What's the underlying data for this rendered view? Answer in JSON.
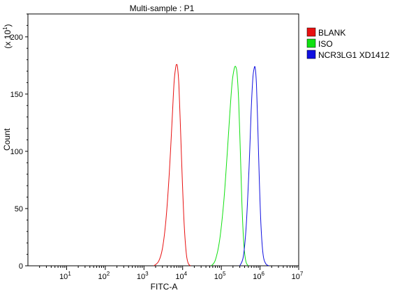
{
  "chart_data": {
    "type": "line",
    "title": "Multi-sample : P1",
    "xlabel": "FITC-A",
    "ylabel": "Count",
    "y_multiplier_label": "(x 10",
    "y_multiplier_exp": "1",
    "x_scale": "log",
    "xlim": [
      1,
      10000000
    ],
    "ylim": [
      0,
      220
    ],
    "y_ticks": [
      0,
      50,
      100,
      150,
      200
    ],
    "x_ticks": [
      {
        "value": 10,
        "base": "10",
        "exp": "1"
      },
      {
        "value": 100,
        "base": "10",
        "exp": "2"
      },
      {
        "value": 1000,
        "base": "10",
        "exp": "3"
      },
      {
        "value": 10000,
        "base": "10",
        "exp": "4"
      },
      {
        "value": 100000,
        "base": "10",
        "exp": "5"
      },
      {
        "value": 1000000,
        "base": "10",
        "exp": "6"
      },
      {
        "value": 10000000,
        "base": "10",
        "exp": "7"
      }
    ],
    "legend_position": "top-right",
    "grid": false,
    "series": [
      {
        "name": "BLANK",
        "color": "#e81010",
        "x": [
          1800,
          2400,
          3000,
          3700,
          4500,
          5300,
          6000,
          6600,
          7000,
          7400,
          8000,
          8800,
          9800,
          11000,
          12500,
          14000,
          16000
        ],
        "y": [
          0,
          4,
          15,
          40,
          80,
          125,
          160,
          173,
          176,
          173,
          158,
          120,
          75,
          35,
          10,
          2,
          0
        ]
      },
      {
        "name": "ISO",
        "color": "#10e010",
        "x": [
          55000,
          70000,
          90000,
          115000,
          140000,
          165000,
          190000,
          215000,
          235000,
          255000,
          280000,
          310000,
          340000,
          380000,
          430000,
          500000
        ],
        "y": [
          0,
          5,
          22,
          55,
          95,
          132,
          160,
          172,
          174,
          168,
          145,
          100,
          55,
          20,
          4,
          0
        ]
      },
      {
        "name": "NCR3LG1 XD1412",
        "color": "#1010e0",
        "x": [
          300000,
          370000,
          440000,
          520000,
          590000,
          650000,
          700000,
          750000,
          810000,
          880000,
          960000,
          1060000,
          1200000,
          1400000,
          1700000
        ],
        "y": [
          0,
          8,
          35,
          85,
          135,
          163,
          172,
          173,
          158,
          120,
          75,
          35,
          10,
          2,
          0
        ]
      }
    ]
  }
}
